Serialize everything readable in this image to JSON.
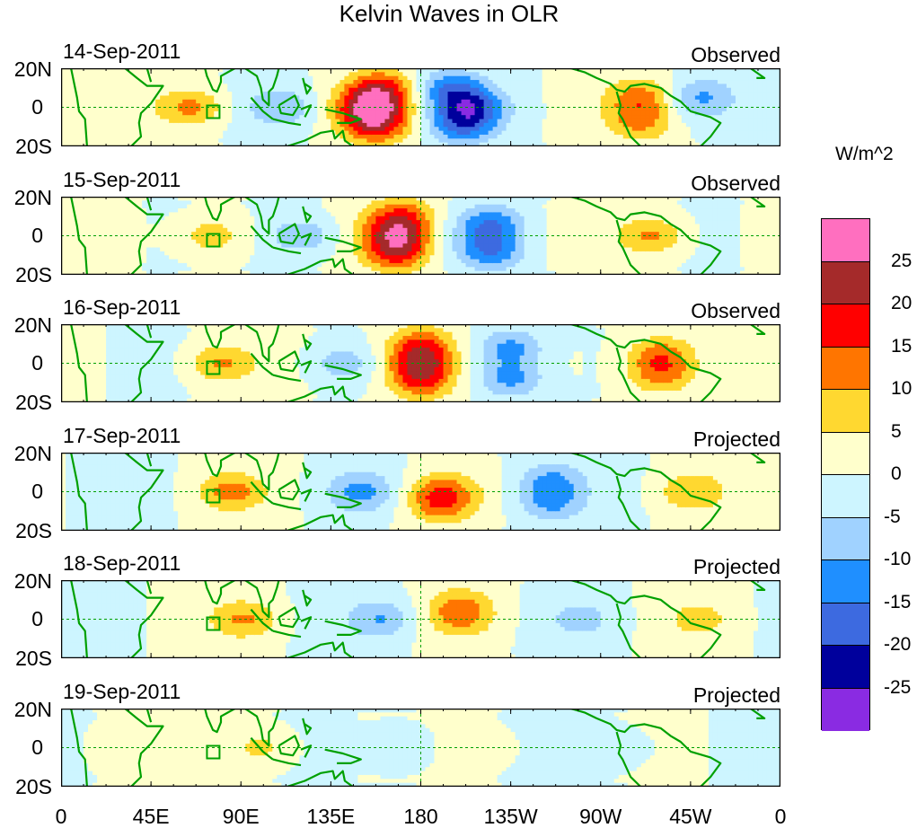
{
  "title": "Kelvin Waves in OLR",
  "units": "W/m^2",
  "lat_labels": [
    "20N",
    "0",
    "20S"
  ],
  "lon_labels": [
    "0",
    "45E",
    "90E",
    "135E",
    "180",
    "135W",
    "90W",
    "45W",
    "0"
  ],
  "panels": [
    {
      "date": "14-Sep-2011",
      "status": "Observed",
      "blobs": [
        {
          "lon": 155,
          "lat": 0,
          "amp": 22
        },
        {
          "lon": 160,
          "lat": 10,
          "amp": 15
        },
        {
          "lon": 158,
          "lat": -10,
          "amp": 15
        },
        {
          "lon": 205,
          "lat": 0,
          "amp": -17
        },
        {
          "lon": 195,
          "lat": 10,
          "amp": -13
        },
        {
          "lon": 200,
          "lat": -10,
          "amp": -13
        },
        {
          "lon": 290,
          "lat": 5,
          "amp": 12
        },
        {
          "lon": 290,
          "lat": -8,
          "amp": 10
        },
        {
          "lon": 65,
          "lat": 0,
          "amp": 12
        },
        {
          "lon": 110,
          "lat": 0,
          "amp": -9
        },
        {
          "lon": 320,
          "lat": 5,
          "amp": -10
        }
      ]
    },
    {
      "date": "15-Sep-2011",
      "status": "Observed",
      "blobs": [
        {
          "lon": 168,
          "lat": 0,
          "amp": 18
        },
        {
          "lon": 170,
          "lat": 10,
          "amp": 14
        },
        {
          "lon": 168,
          "lat": -10,
          "amp": 14
        },
        {
          "lon": 215,
          "lat": 6,
          "amp": -14
        },
        {
          "lon": 215,
          "lat": -8,
          "amp": -14
        },
        {
          "lon": 295,
          "lat": 0,
          "amp": 12
        },
        {
          "lon": 75,
          "lat": 0,
          "amp": 9
        },
        {
          "lon": 120,
          "lat": 0,
          "amp": -10
        }
      ]
    },
    {
      "date": "16-Sep-2011",
      "status": "Observed",
      "blobs": [
        {
          "lon": 180,
          "lat": 0,
          "amp": 17
        },
        {
          "lon": 180,
          "lat": 10,
          "amp": 13
        },
        {
          "lon": 180,
          "lat": -10,
          "amp": 13
        },
        {
          "lon": 225,
          "lat": 8,
          "amp": -12
        },
        {
          "lon": 225,
          "lat": -8,
          "amp": -12
        },
        {
          "lon": 300,
          "lat": 5,
          "amp": 12
        },
        {
          "lon": 300,
          "lat": -6,
          "amp": 12
        },
        {
          "lon": 80,
          "lat": 0,
          "amp": 11
        },
        {
          "lon": 140,
          "lat": 0,
          "amp": -8
        }
      ]
    },
    {
      "date": "17-Sep-2011",
      "status": "Projected",
      "blobs": [
        {
          "lon": 190,
          "lat": 0,
          "amp": 12
        },
        {
          "lon": 190,
          "lat": -8,
          "amp": 9
        },
        {
          "lon": 245,
          "lat": 6,
          "amp": -10
        },
        {
          "lon": 245,
          "lat": -6,
          "amp": -10
        },
        {
          "lon": 315,
          "lat": 0,
          "amp": 9
        },
        {
          "lon": 85,
          "lat": 0,
          "amp": 11
        },
        {
          "lon": 150,
          "lat": 0,
          "amp": -11
        }
      ]
    },
    {
      "date": "18-Sep-2011",
      "status": "Projected",
      "blobs": [
        {
          "lon": 200,
          "lat": 0,
          "amp": 8
        },
        {
          "lon": 200,
          "lat": 8,
          "amp": 7
        },
        {
          "lon": 260,
          "lat": 0,
          "amp": -6
        },
        {
          "lon": 320,
          "lat": 0,
          "amp": 6
        },
        {
          "lon": 92,
          "lat": 0,
          "amp": 10
        },
        {
          "lon": 160,
          "lat": 0,
          "amp": -10
        }
      ]
    },
    {
      "date": "19-Sep-2011",
      "status": "Projected",
      "blobs": [
        {
          "lon": 210,
          "lat": 0,
          "amp": 5
        },
        {
          "lon": 280,
          "lat": 0,
          "amp": -4
        },
        {
          "lon": 100,
          "lat": 0,
          "amp": 7
        },
        {
          "lon": 170,
          "lat": 0,
          "amp": -6
        },
        {
          "lon": 30,
          "lat": 0,
          "amp": 4
        }
      ]
    }
  ],
  "colorbar": {
    "labels": [
      "25",
      "20",
      "15",
      "10",
      "5",
      "0",
      "-5",
      "-10",
      "-15",
      "-20",
      "-25"
    ],
    "colors": [
      "#ff6fbf",
      "#a52a2a",
      "#ff0000",
      "#ff7500",
      "#ffd830",
      "#ffffcc",
      "#cdf5ff",
      "#a0d2ff",
      "#1f8fff",
      "#3d6ae0",
      "#00009c",
      "#8a2be2"
    ]
  },
  "map_colors": {
    "coast": "#00a000",
    "equator": "#00a000"
  }
}
